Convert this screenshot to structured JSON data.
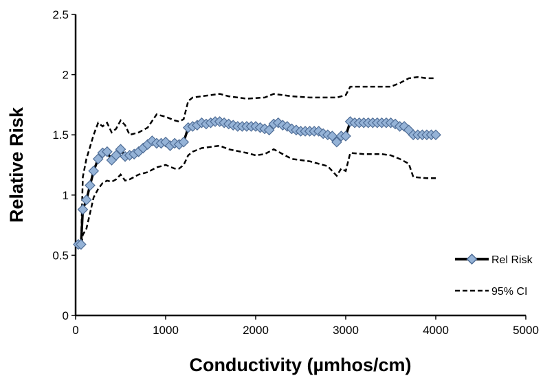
{
  "chart_data": {
    "type": "line",
    "title": "",
    "xlabel": "Conductivity (µmhos/cm)",
    "ylabel": "Relative Risk",
    "xlim": [
      0,
      5000
    ],
    "ylim": [
      0,
      2.5
    ],
    "x_ticks": [
      "0",
      "1000",
      "2000",
      "3000",
      "4000",
      "5000"
    ],
    "y_ticks": [
      "0",
      "0.5",
      "1",
      "1.5",
      "2",
      "2.5"
    ],
    "grid": false,
    "legend_position": "bottom-right",
    "series": [
      {
        "name": "Rel Risk",
        "style": "solid-line-diamond-markers",
        "color": "#000000",
        "marker_fill": "#95B3D7",
        "marker_stroke": "#4F6D96",
        "points": [
          [
            30,
            0.59
          ],
          [
            60,
            0.59
          ],
          [
            80,
            0.88
          ],
          [
            120,
            0.96
          ],
          [
            160,
            1.08
          ],
          [
            200,
            1.2
          ],
          [
            250,
            1.3
          ],
          [
            300,
            1.35
          ],
          [
            350,
            1.36
          ],
          [
            400,
            1.29
          ],
          [
            450,
            1.33
          ],
          [
            500,
            1.38
          ],
          [
            550,
            1.32
          ],
          [
            600,
            1.33
          ],
          [
            650,
            1.34
          ],
          [
            700,
            1.36
          ],
          [
            750,
            1.39
          ],
          [
            800,
            1.42
          ],
          [
            850,
            1.45
          ],
          [
            900,
            1.43
          ],
          [
            950,
            1.43
          ],
          [
            1000,
            1.44
          ],
          [
            1050,
            1.41
          ],
          [
            1100,
            1.43
          ],
          [
            1150,
            1.42
          ],
          [
            1200,
            1.44
          ],
          [
            1250,
            1.56
          ],
          [
            1300,
            1.57
          ],
          [
            1350,
            1.58
          ],
          [
            1400,
            1.6
          ],
          [
            1450,
            1.59
          ],
          [
            1500,
            1.6
          ],
          [
            1550,
            1.61
          ],
          [
            1600,
            1.61
          ],
          [
            1650,
            1.6
          ],
          [
            1700,
            1.59
          ],
          [
            1750,
            1.58
          ],
          [
            1800,
            1.57
          ],
          [
            1850,
            1.57
          ],
          [
            1900,
            1.57
          ],
          [
            1950,
            1.57
          ],
          [
            2000,
            1.57
          ],
          [
            2050,
            1.56
          ],
          [
            2100,
            1.55
          ],
          [
            2150,
            1.54
          ],
          [
            2200,
            1.59
          ],
          [
            2250,
            1.6
          ],
          [
            2300,
            1.58
          ],
          [
            2350,
            1.57
          ],
          [
            2400,
            1.55
          ],
          [
            2450,
            1.54
          ],
          [
            2500,
            1.53
          ],
          [
            2550,
            1.53
          ],
          [
            2600,
            1.53
          ],
          [
            2650,
            1.53
          ],
          [
            2700,
            1.53
          ],
          [
            2750,
            1.51
          ],
          [
            2800,
            1.5
          ],
          [
            2850,
            1.49
          ],
          [
            2900,
            1.44
          ],
          [
            2950,
            1.49
          ],
          [
            3000,
            1.49
          ],
          [
            3050,
            1.61
          ],
          [
            3100,
            1.6
          ],
          [
            3150,
            1.6
          ],
          [
            3200,
            1.6
          ],
          [
            3250,
            1.6
          ],
          [
            3300,
            1.6
          ],
          [
            3350,
            1.6
          ],
          [
            3400,
            1.6
          ],
          [
            3450,
            1.6
          ],
          [
            3500,
            1.6
          ],
          [
            3550,
            1.59
          ],
          [
            3600,
            1.57
          ],
          [
            3650,
            1.57
          ],
          [
            3700,
            1.54
          ],
          [
            3750,
            1.5
          ],
          [
            3800,
            1.5
          ],
          [
            3850,
            1.5
          ],
          [
            3900,
            1.5
          ],
          [
            3950,
            1.5
          ],
          [
            4000,
            1.5
          ]
        ]
      },
      {
        "name": "95% CI",
        "style": "dashed",
        "color": "#000000",
        "upper": [
          [
            30,
            0.61
          ],
          [
            60,
            0.6
          ],
          [
            80,
            1.15
          ],
          [
            120,
            1.3
          ],
          [
            160,
            1.4
          ],
          [
            200,
            1.5
          ],
          [
            250,
            1.6
          ],
          [
            300,
            1.57
          ],
          [
            350,
            1.6
          ],
          [
            400,
            1.52
          ],
          [
            450,
            1.55
          ],
          [
            500,
            1.62
          ],
          [
            550,
            1.58
          ],
          [
            600,
            1.5
          ],
          [
            700,
            1.52
          ],
          [
            800,
            1.56
          ],
          [
            900,
            1.67
          ],
          [
            1000,
            1.65
          ],
          [
            1100,
            1.62
          ],
          [
            1150,
            1.61
          ],
          [
            1200,
            1.63
          ],
          [
            1250,
            1.78
          ],
          [
            1300,
            1.81
          ],
          [
            1400,
            1.82
          ],
          [
            1600,
            1.84
          ],
          [
            1700,
            1.82
          ],
          [
            1900,
            1.8
          ],
          [
            2100,
            1.81
          ],
          [
            2200,
            1.84
          ],
          [
            2400,
            1.82
          ],
          [
            2600,
            1.81
          ],
          [
            2800,
            1.81
          ],
          [
            2900,
            1.81
          ],
          [
            3000,
            1.83
          ],
          [
            3050,
            1.9
          ],
          [
            3200,
            1.9
          ],
          [
            3400,
            1.9
          ],
          [
            3500,
            1.9
          ],
          [
            3600,
            1.93
          ],
          [
            3700,
            1.97
          ],
          [
            3800,
            1.98
          ],
          [
            3900,
            1.97
          ],
          [
            4000,
            1.97
          ]
        ],
        "lower": [
          [
            30,
            0.57
          ],
          [
            60,
            0.56
          ],
          [
            80,
            0.67
          ],
          [
            120,
            0.72
          ],
          [
            160,
            0.85
          ],
          [
            200,
            0.98
          ],
          [
            250,
            1.05
          ],
          [
            300,
            1.1
          ],
          [
            350,
            1.12
          ],
          [
            400,
            1.11
          ],
          [
            450,
            1.13
          ],
          [
            500,
            1.17
          ],
          [
            550,
            1.12
          ],
          [
            600,
            1.13
          ],
          [
            700,
            1.17
          ],
          [
            800,
            1.19
          ],
          [
            900,
            1.23
          ],
          [
            1000,
            1.25
          ],
          [
            1100,
            1.22
          ],
          [
            1150,
            1.22
          ],
          [
            1200,
            1.25
          ],
          [
            1250,
            1.33
          ],
          [
            1300,
            1.36
          ],
          [
            1400,
            1.39
          ],
          [
            1600,
            1.41
          ],
          [
            1700,
            1.38
          ],
          [
            1900,
            1.35
          ],
          [
            2000,
            1.33
          ],
          [
            2100,
            1.34
          ],
          [
            2200,
            1.38
          ],
          [
            2400,
            1.3
          ],
          [
            2600,
            1.28
          ],
          [
            2800,
            1.24
          ],
          [
            2900,
            1.16
          ],
          [
            2950,
            1.22
          ],
          [
            3000,
            1.2
          ],
          [
            3050,
            1.35
          ],
          [
            3200,
            1.34
          ],
          [
            3400,
            1.34
          ],
          [
            3500,
            1.33
          ],
          [
            3600,
            1.3
          ],
          [
            3700,
            1.26
          ],
          [
            3750,
            1.15
          ],
          [
            3900,
            1.14
          ],
          [
            4000,
            1.14
          ]
        ]
      }
    ]
  }
}
